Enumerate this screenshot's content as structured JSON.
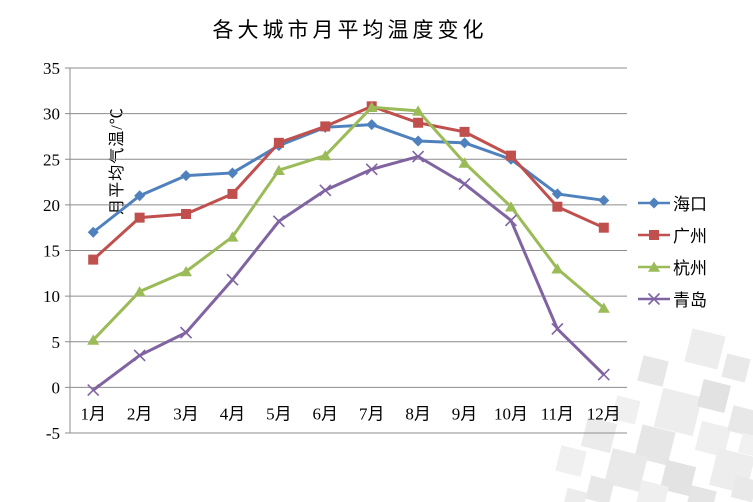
{
  "page": {
    "background": "#ffffff"
  },
  "chart_data": {
    "type": "line",
    "title": "各大城市月平均温度变化",
    "ylabel": "月平均气温/℃",
    "xlabel": "",
    "categories": [
      "1月",
      "2月",
      "3月",
      "4月",
      "5月",
      "6月",
      "7月",
      "8月",
      "9月",
      "10月",
      "11月",
      "12月"
    ],
    "series": [
      {
        "id": "haikou",
        "name": "海口",
        "color": "#4F81BD",
        "marker": "diamond",
        "values": [
          17.0,
          21.0,
          23.2,
          23.5,
          26.5,
          28.5,
          28.8,
          27.0,
          26.8,
          25.0,
          21.2,
          20.5
        ]
      },
      {
        "id": "guangzhou",
        "name": "广州",
        "color": "#C0504D",
        "marker": "square",
        "values": [
          14.0,
          18.6,
          19.0,
          21.2,
          26.8,
          28.6,
          30.8,
          29.0,
          28.0,
          25.4,
          19.8,
          17.5
        ]
      },
      {
        "id": "hangzhou",
        "name": "杭州",
        "color": "#9BBB59",
        "marker": "triangle",
        "values": [
          5.2,
          10.5,
          12.7,
          16.5,
          23.8,
          25.4,
          30.7,
          30.3,
          24.6,
          19.8,
          13.0,
          8.7
        ]
      },
      {
        "id": "qingdao",
        "name": "青岛",
        "color": "#8064A2",
        "marker": "x",
        "values": [
          -0.3,
          3.5,
          6.0,
          11.8,
          18.2,
          21.6,
          23.9,
          25.3,
          22.3,
          18.3,
          6.4,
          1.4
        ]
      }
    ],
    "ylim": [
      -5,
      35
    ],
    "yticks": [
      -5,
      0,
      5,
      10,
      15,
      20,
      25,
      30,
      35
    ],
    "grid": true,
    "legend_position": "right",
    "gridline_color": "#8C8C8C",
    "axis_color": "#8C8C8C",
    "text_color": "#000000"
  }
}
